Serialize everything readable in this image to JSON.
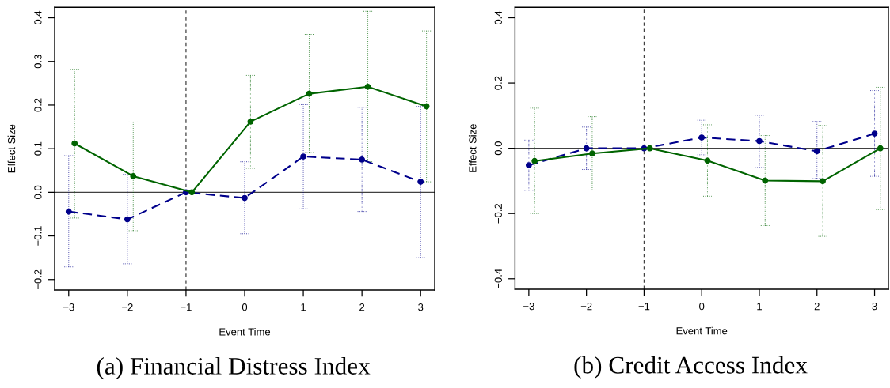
{
  "chart_data": [
    {
      "type": "line",
      "title": "(a) Financial Distress Index",
      "xlabel": "Event Time",
      "ylabel": "Effect Size",
      "xlim": [
        -3.24,
        3.24
      ],
      "ylim": [
        -0.224,
        0.424
      ],
      "xticks": [
        -3,
        -2,
        -1,
        0,
        1,
        2,
        3
      ],
      "yticks": [
        -0.2,
        -0.1,
        {
          "value": 0,
          "label": "0.0"
        },
        0.1,
        0.2,
        0.3,
        0.4
      ],
      "marker": "circle",
      "ref_lines": [
        {
          "axis": "y",
          "value": 0,
          "color": "#404040",
          "line_style": "solid"
        },
        {
          "axis": "x",
          "value": -1,
          "color": "#404040",
          "line_style": "dashed"
        }
      ],
      "series": [
        {
          "color": "#00008b",
          "line_style": "dashed",
          "x": [
            -3,
            -2,
            -1,
            0,
            1,
            2,
            3
          ],
          "values": [
            -0.044,
            -0.062,
            0,
            -0.013,
            0.082,
            0.075,
            0.024
          ],
          "errors": [
            [
              -0.171,
              0.084
            ],
            [
              -0.164,
              0.041
            ],
            null,
            [
              -0.095,
              0.07
            ],
            [
              -0.038,
              0.201
            ],
            [
              -0.044,
              0.195
            ],
            [
              -0.15,
              0.197
            ]
          ]
        },
        {
          "color": "#006400",
          "line_style": "solid",
          "x": [
            -2.9,
            -1.9,
            -0.9,
            0.1,
            1.1,
            2.1,
            3.1
          ],
          "values": [
            0.112,
            0.037,
            0,
            0.162,
            0.226,
            0.242,
            0.197
          ],
          "errors": [
            [
              -0.059,
              0.282
            ],
            [
              -0.088,
              0.161
            ],
            null,
            [
              0.055,
              0.268
            ],
            [
              0.091,
              0.362
            ],
            [
              0.07,
              0.415
            ],
            [
              0.024,
              0.37
            ]
          ]
        }
      ]
    },
    {
      "type": "line",
      "title": "(b) Credit Access Index",
      "xlabel": "Event Time",
      "ylabel": "Effect Size",
      "xlim": [
        -3.24,
        3.24
      ],
      "ylim": [
        -0.432,
        0.432
      ],
      "xticks": [
        -3,
        -2,
        -1,
        0,
        1,
        2,
        3
      ],
      "yticks": [
        -0.4,
        -0.2,
        {
          "value": 0,
          "label": "0.0"
        },
        0.2,
        0.4
      ],
      "marker": "circle",
      "ref_lines": [
        {
          "axis": "y",
          "value": 0,
          "color": "#404040",
          "line_style": "solid"
        },
        {
          "axis": "x",
          "value": -1,
          "color": "#404040",
          "line_style": "dashed"
        }
      ],
      "series": [
        {
          "color": "#00008b",
          "line_style": "dashed",
          "x": [
            -3,
            -2,
            -1,
            0,
            1,
            2,
            3
          ],
          "values": [
            -0.052,
            0,
            0,
            0.033,
            0.022,
            -0.009,
            0.045
          ],
          "errors": [
            [
              -0.129,
              0.025
            ],
            [
              -0.065,
              0.065
            ],
            null,
            [
              -0.02,
              0.086
            ],
            [
              -0.059,
              0.101
            ],
            [
              -0.093,
              0.082
            ],
            [
              -0.086,
              0.177
            ]
          ]
        },
        {
          "color": "#006400",
          "line_style": "solid",
          "x": [
            -2.9,
            -1.9,
            -0.9,
            0.1,
            1.1,
            2.1,
            3.1
          ],
          "values": [
            -0.039,
            -0.016,
            0,
            -0.038,
            -0.099,
            -0.101,
            0
          ],
          "errors": [
            [
              -0.2,
              0.123
            ],
            [
              -0.128,
              0.097
            ],
            null,
            [
              -0.147,
              0.072
            ],
            [
              -0.237,
              0.039
            ],
            [
              -0.27,
              0.07
            ],
            [
              -0.188,
              0.187
            ]
          ]
        }
      ]
    }
  ]
}
